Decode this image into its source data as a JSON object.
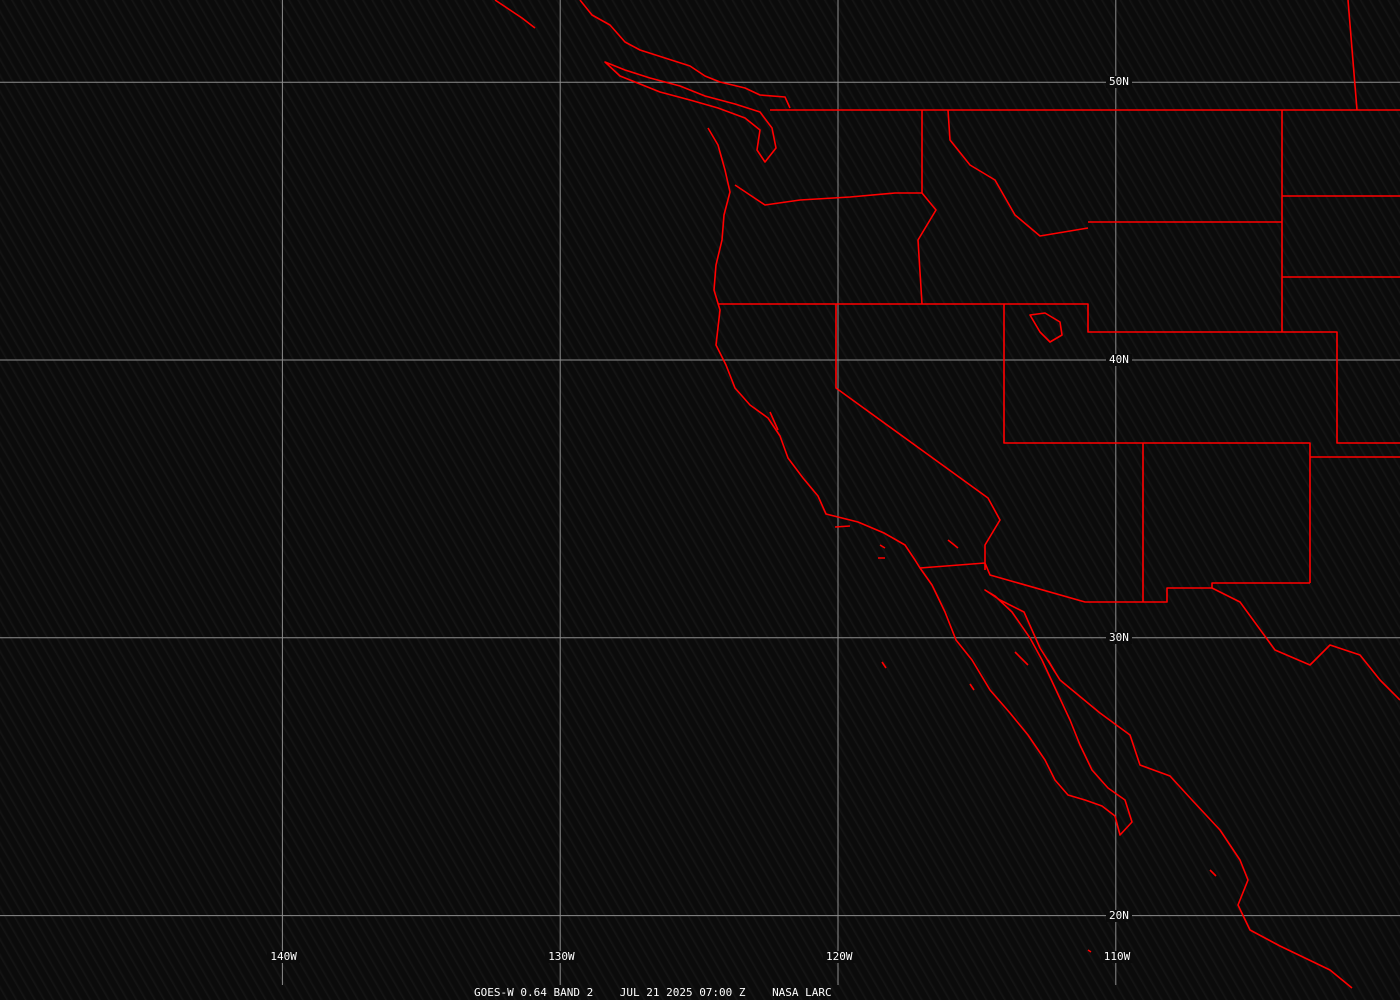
{
  "caption": {
    "satellite": "GOES-W 0.64 BAND 2",
    "datetime": "JUL 21 2025 07:00 Z",
    "source": "NASA LARC"
  },
  "grid": {
    "longitudes": [
      {
        "label": "140W",
        "value": -140
      },
      {
        "label": "130W",
        "value": -130
      },
      {
        "label": "120W",
        "value": -120
      },
      {
        "label": "110W",
        "value": -110
      }
    ],
    "latitudes": [
      {
        "label": "50N",
        "value": 50
      },
      {
        "label": "40N",
        "value": 40
      },
      {
        "label": "30N",
        "value": 30
      },
      {
        "label": "20N",
        "value": 20
      }
    ]
  },
  "colors": {
    "boundaries": "#ff0000",
    "grid": "#8c8c8c",
    "text": "#ffffff",
    "background": "#0b0b0b"
  }
}
